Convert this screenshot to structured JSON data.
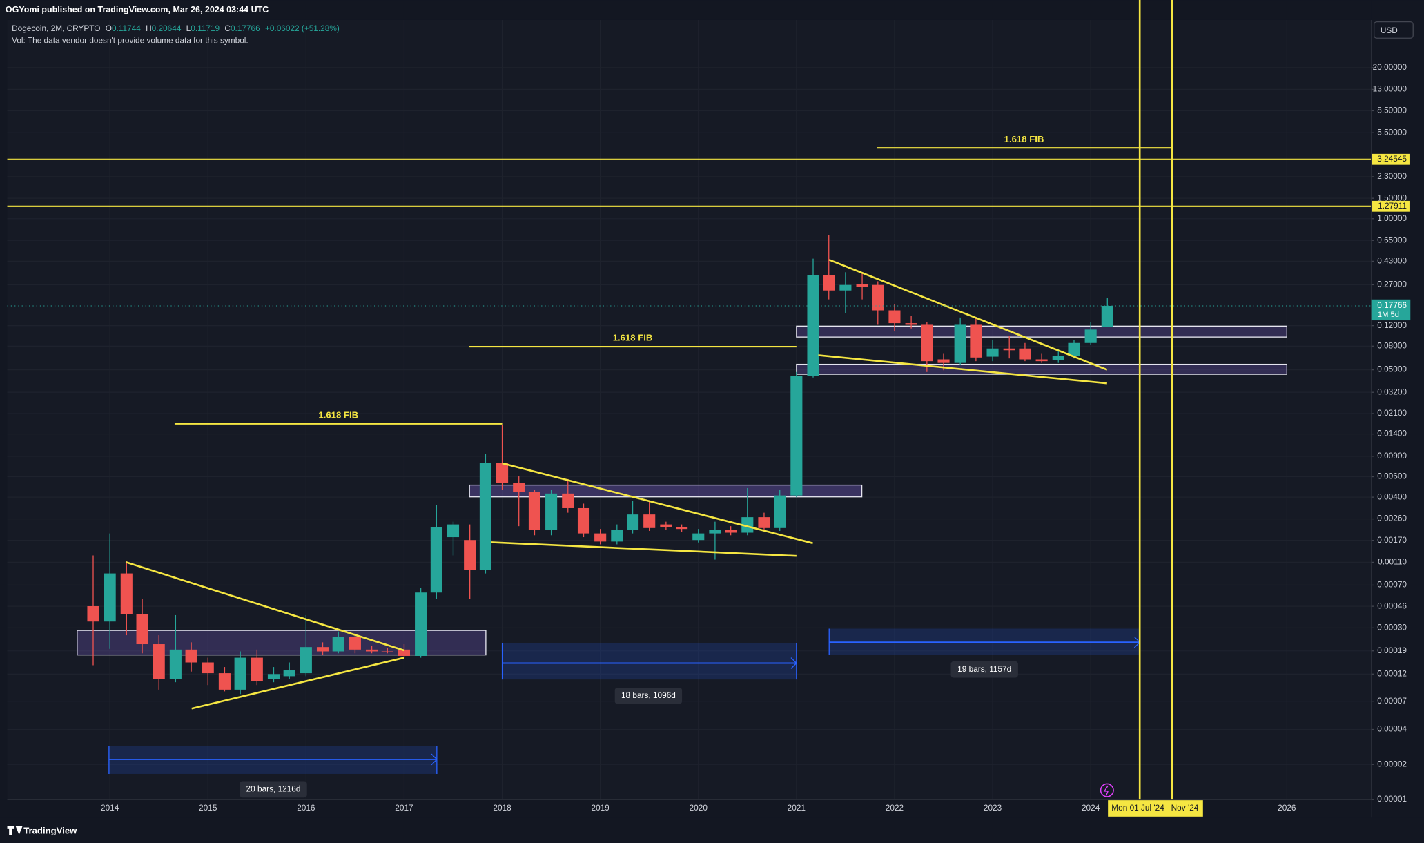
{
  "header": {
    "published": "OGYomi published on TradingView.com, Mar 26, 2024 03:44 UTC",
    "vol_note": "Vol: The data vendor doesn't provide volume data for this symbol.",
    "currency": "USD",
    "brand": "TradingView"
  },
  "chart_data": {
    "type": "candlestick",
    "title": "Dogecoin, 2M, CRYPTO",
    "ohlc_letters": [
      "O",
      "H",
      "L",
      "C"
    ],
    "change": "+0.06022 (+51.28%)",
    "countdown": "1M 5d",
    "up_color": "#26a69a",
    "down_color": "#ef5350",
    "log": true,
    "grid": true,
    "xlim": [
      2012.954,
      2026.861
    ],
    "xticks": [
      2014,
      2015,
      2016,
      2017,
      2018,
      2019,
      2020,
      2021,
      2022,
      2023,
      2024,
      2026
    ],
    "ylim": [
      1e-05,
      51.4
    ],
    "yticks": [
      {
        "value": 20,
        "label": "20.00000"
      },
      {
        "value": 13,
        "label": "13.00000"
      },
      {
        "value": 8.5,
        "label": "8.50000"
      },
      {
        "value": 5.5,
        "label": "5.50000"
      },
      {
        "value": 2.3,
        "label": "2.30000"
      },
      {
        "value": 1.5,
        "label": "1.50000"
      },
      {
        "value": 1,
        "label": "1.00000"
      },
      {
        "value": 0.65,
        "label": "0.65000"
      },
      {
        "value": 0.43,
        "label": "0.43000"
      },
      {
        "value": 0.27,
        "label": "0.27000"
      },
      {
        "value": 0.12,
        "label": "0.12000"
      },
      {
        "value": 0.08,
        "label": "0.08000"
      },
      {
        "value": 0.05,
        "label": "0.05000"
      },
      {
        "value": 0.032,
        "label": "0.03200"
      },
      {
        "value": 0.021,
        "label": "0.02100"
      },
      {
        "value": 0.014,
        "label": "0.01400"
      },
      {
        "value": 0.009,
        "label": "0.00900"
      },
      {
        "value": 0.006,
        "label": "0.00600"
      },
      {
        "value": 0.004,
        "label": "0.00400"
      },
      {
        "value": 0.0026,
        "label": "0.00260"
      },
      {
        "value": 0.0017,
        "label": "0.00170"
      },
      {
        "value": 0.0011,
        "label": "0.00110"
      },
      {
        "value": 0.0007,
        "label": "0.00070"
      },
      {
        "value": 0.00046,
        "label": "0.00046"
      },
      {
        "value": 0.0003,
        "label": "0.00030"
      },
      {
        "value": 0.00019,
        "label": "0.00019"
      },
      {
        "value": 0.00012,
        "label": "0.00012"
      },
      {
        "value": 7e-05,
        "label": "0.00007"
      },
      {
        "value": 4e-05,
        "label": "0.00004"
      },
      {
        "value": 2e-05,
        "label": "0.00002"
      },
      {
        "value": 1e-05,
        "label": "0.00001"
      }
    ],
    "candles": [
      {
        "x": 2013.83,
        "open": 0.000461,
        "high": 0.00126,
        "low": 0.000143,
        "close": 0.00034
      },
      {
        "x": 2014.0,
        "open": 0.00034,
        "high": 0.00195,
        "low": 0.000198,
        "close": 0.000882
      },
      {
        "x": 2014.17,
        "open": 0.000882,
        "high": 0.00113,
        "low": 0.000259,
        "close": 0.000393
      },
      {
        "x": 2014.33,
        "open": 0.000393,
        "high": 0.000533,
        "low": 0.000181,
        "close": 0.000217
      },
      {
        "x": 2014.5,
        "open": 0.000217,
        "high": 0.000259,
        "low": 8.81e-05,
        "close": 0.000109
      },
      {
        "x": 2014.67,
        "open": 0.000109,
        "high": 0.000386,
        "low": 0.000102,
        "close": 0.000195
      },
      {
        "x": 2014.83,
        "open": 0.000195,
        "high": 0.000225,
        "low": 0.000126,
        "close": 0.000151
      },
      {
        "x": 2015.0,
        "open": 0.000151,
        "high": 0.000166,
        "low": 9.65e-05,
        "close": 0.000122
      },
      {
        "x": 2015.17,
        "open": 0.000122,
        "high": 0.000138,
        "low": 8.51e-05,
        "close": 8.81e-05
      },
      {
        "x": 2015.33,
        "open": 8.81e-05,
        "high": 0.000188,
        "low": 8.06e-05,
        "close": 0.000166
      },
      {
        "x": 2015.5,
        "open": 0.000166,
        "high": 0.000195,
        "low": 9.65e-05,
        "close": 0.000105
      },
      {
        "x": 2015.67,
        "open": 0.000109,
        "high": 0.000138,
        "low": 0.000102,
        "close": 0.00012
      },
      {
        "x": 2015.83,
        "open": 0.000115,
        "high": 0.000151,
        "low": 0.000109,
        "close": 0.000129
      },
      {
        "x": 2016.0,
        "open": 0.000122,
        "high": 0.000386,
        "low": 0.000115,
        "close": 0.000205
      },
      {
        "x": 2016.17,
        "open": 0.000205,
        "high": 0.000225,
        "low": 0.000175,
        "close": 0.000188
      },
      {
        "x": 2016.33,
        "open": 0.000188,
        "high": 0.000279,
        "low": 0.000181,
        "close": 0.00025
      },
      {
        "x": 2016.5,
        "open": 0.00025,
        "high": 0.000269,
        "low": 0.000181,
        "close": 0.000195
      },
      {
        "x": 2016.67,
        "open": 0.000195,
        "high": 0.000209,
        "low": 0.000181,
        "close": 0.000188
      },
      {
        "x": 2016.83,
        "open": 0.000188,
        "high": 0.000202,
        "low": 0.000181,
        "close": 0.000185
      },
      {
        "x": 2017.0,
        "open": 0.000195,
        "high": 0.000217,
        "low": 0.000166,
        "close": 0.000172
      },
      {
        "x": 2017.17,
        "open": 0.000172,
        "high": 0.000661,
        "low": 0.000166,
        "close": 0.000604
      },
      {
        "x": 2017.33,
        "open": 0.000604,
        "high": 0.0034,
        "low": 0.000533,
        "close": 0.00221
      },
      {
        "x": 2017.5,
        "open": 0.00181,
        "high": 0.00246,
        "low": 0.00126,
        "close": 0.00233
      },
      {
        "x": 2017.67,
        "open": 0.00171,
        "high": 0.00233,
        "low": 0.000533,
        "close": 0.000948
      },
      {
        "x": 2017.83,
        "open": 0.000948,
        "high": 0.00948,
        "low": 0.000882,
        "close": 0.00791
      },
      {
        "x": 2018.0,
        "open": 0.00791,
        "high": 0.01686,
        "low": 0.00461,
        "close": 0.00533
      },
      {
        "x": 2018.17,
        "open": 0.00533,
        "high": 0.00604,
        "low": 0.00225,
        "close": 0.00445
      },
      {
        "x": 2018.33,
        "open": 0.00445,
        "high": 0.00461,
        "low": 0.00188,
        "close": 0.00209
      },
      {
        "x": 2018.5,
        "open": 0.00209,
        "high": 0.00461,
        "low": 0.00188,
        "close": 0.0043
      },
      {
        "x": 2018.67,
        "open": 0.0043,
        "high": 0.00573,
        "low": 0.00294,
        "close": 0.00322
      },
      {
        "x": 2018.83,
        "open": 0.00322,
        "high": 0.00352,
        "low": 0.00181,
        "close": 0.00195
      },
      {
        "x": 2019.0,
        "open": 0.00195,
        "high": 0.00213,
        "low": 0.00157,
        "close": 0.00166
      },
      {
        "x": 2019.17,
        "open": 0.00166,
        "high": 0.00233,
        "low": 0.00157,
        "close": 0.00209
      },
      {
        "x": 2019.33,
        "open": 0.00209,
        "high": 0.00372,
        "low": 0.00195,
        "close": 0.00284
      },
      {
        "x": 2019.5,
        "open": 0.00284,
        "high": 0.00372,
        "low": 0.00205,
        "close": 0.00217
      },
      {
        "x": 2019.67,
        "open": 0.00233,
        "high": 0.00246,
        "low": 0.00209,
        "close": 0.00221
      },
      {
        "x": 2019.83,
        "open": 0.00221,
        "high": 0.00233,
        "low": 0.00202,
        "close": 0.00213
      },
      {
        "x": 2020.0,
        "open": 0.00171,
        "high": 0.00213,
        "low": 0.00163,
        "close": 0.00195
      },
      {
        "x": 2020.17,
        "open": 0.00195,
        "high": 0.00246,
        "low": 0.00116,
        "close": 0.00209
      },
      {
        "x": 2020.33,
        "open": 0.00209,
        "high": 0.00225,
        "low": 0.00188,
        "close": 0.00198
      },
      {
        "x": 2020.5,
        "open": 0.00198,
        "high": 0.00479,
        "low": 0.00188,
        "close": 0.00269
      },
      {
        "x": 2020.67,
        "open": 0.00269,
        "high": 0.00294,
        "low": 0.00205,
        "close": 0.00217
      },
      {
        "x": 2020.83,
        "open": 0.00217,
        "high": 0.00461,
        "low": 0.00205,
        "close": 0.00414
      },
      {
        "x": 2021.0,
        "open": 0.00414,
        "high": 0.0479,
        "low": 0.004,
        "close": 0.0445
      },
      {
        "x": 2021.17,
        "open": 0.0445,
        "high": 0.453,
        "low": 0.0429,
        "close": 0.328
      },
      {
        "x": 2021.33,
        "open": 0.328,
        "high": 0.723,
        "low": 0.202,
        "close": 0.241
      },
      {
        "x": 2021.5,
        "open": 0.241,
        "high": 0.346,
        "low": 0.154,
        "close": 0.269
      },
      {
        "x": 2021.67,
        "open": 0.274,
        "high": 0.346,
        "low": 0.202,
        "close": 0.259
      },
      {
        "x": 2021.83,
        "open": 0.269,
        "high": 0.289,
        "low": 0.122,
        "close": 0.1625
      },
      {
        "x": 2022.0,
        "open": 0.1625,
        "high": 0.184,
        "low": 0.107,
        "close": 0.126
      },
      {
        "x": 2022.17,
        "open": 0.126,
        "high": 0.146,
        "low": 0.1135,
        "close": 0.122
      },
      {
        "x": 2022.33,
        "open": 0.122,
        "high": 0.129,
        "low": 0.0479,
        "close": 0.0593
      },
      {
        "x": 2022.5,
        "open": 0.0615,
        "high": 0.0686,
        "low": 0.0496,
        "close": 0.0573
      },
      {
        "x": 2022.67,
        "open": 0.0573,
        "high": 0.141,
        "low": 0.0552,
        "close": 0.122
      },
      {
        "x": 2022.83,
        "open": 0.122,
        "high": 0.141,
        "low": 0.0593,
        "close": 0.0638
      },
      {
        "x": 2023.0,
        "open": 0.0649,
        "high": 0.0898,
        "low": 0.0593,
        "close": 0.0763
      },
      {
        "x": 2023.17,
        "open": 0.0763,
        "high": 0.0982,
        "low": 0.0626,
        "close": 0.0737
      },
      {
        "x": 2023.33,
        "open": 0.0763,
        "high": 0.0851,
        "low": 0.0593,
        "close": 0.0615
      },
      {
        "x": 2023.5,
        "open": 0.0615,
        "high": 0.0686,
        "low": 0.0573,
        "close": 0.0593
      },
      {
        "x": 2023.67,
        "open": 0.0604,
        "high": 0.075,
        "low": 0.0573,
        "close": 0.0661
      },
      {
        "x": 2023.83,
        "open": 0.0661,
        "high": 0.0898,
        "low": 0.0626,
        "close": 0.0851
      },
      {
        "x": 2024.0,
        "open": 0.0851,
        "high": 0.129,
        "low": 0.082,
        "close": 0.111
      },
      {
        "x": 2024.17,
        "open": 0.11744,
        "high": 0.20644,
        "low": 0.11719,
        "close": 0.17766
      }
    ],
    "hlines": [
      3.24545,
      1.27911
    ],
    "vlines": [
      {
        "x": 2024.5,
        "label": "Mon 01 Jul '24"
      },
      {
        "x": 2024.83,
        "label": "Nov '24"
      }
    ],
    "fibs": [
      {
        "label": "1.618 FIB",
        "price": 4.07,
        "x0": 2021.82,
        "x1": 2024.82
      },
      {
        "label": "1.618 FIB",
        "price": 0.0792,
        "x0": 2017.66,
        "x1": 2021.0
      },
      {
        "label": "1.618 FIB",
        "price": 0.01714,
        "x0": 2014.66,
        "x1": 2018.0
      }
    ],
    "ranges": [
      "20 bars, 1216d",
      "18 bars, 1096d",
      "19 bars, 1157d"
    ]
  }
}
